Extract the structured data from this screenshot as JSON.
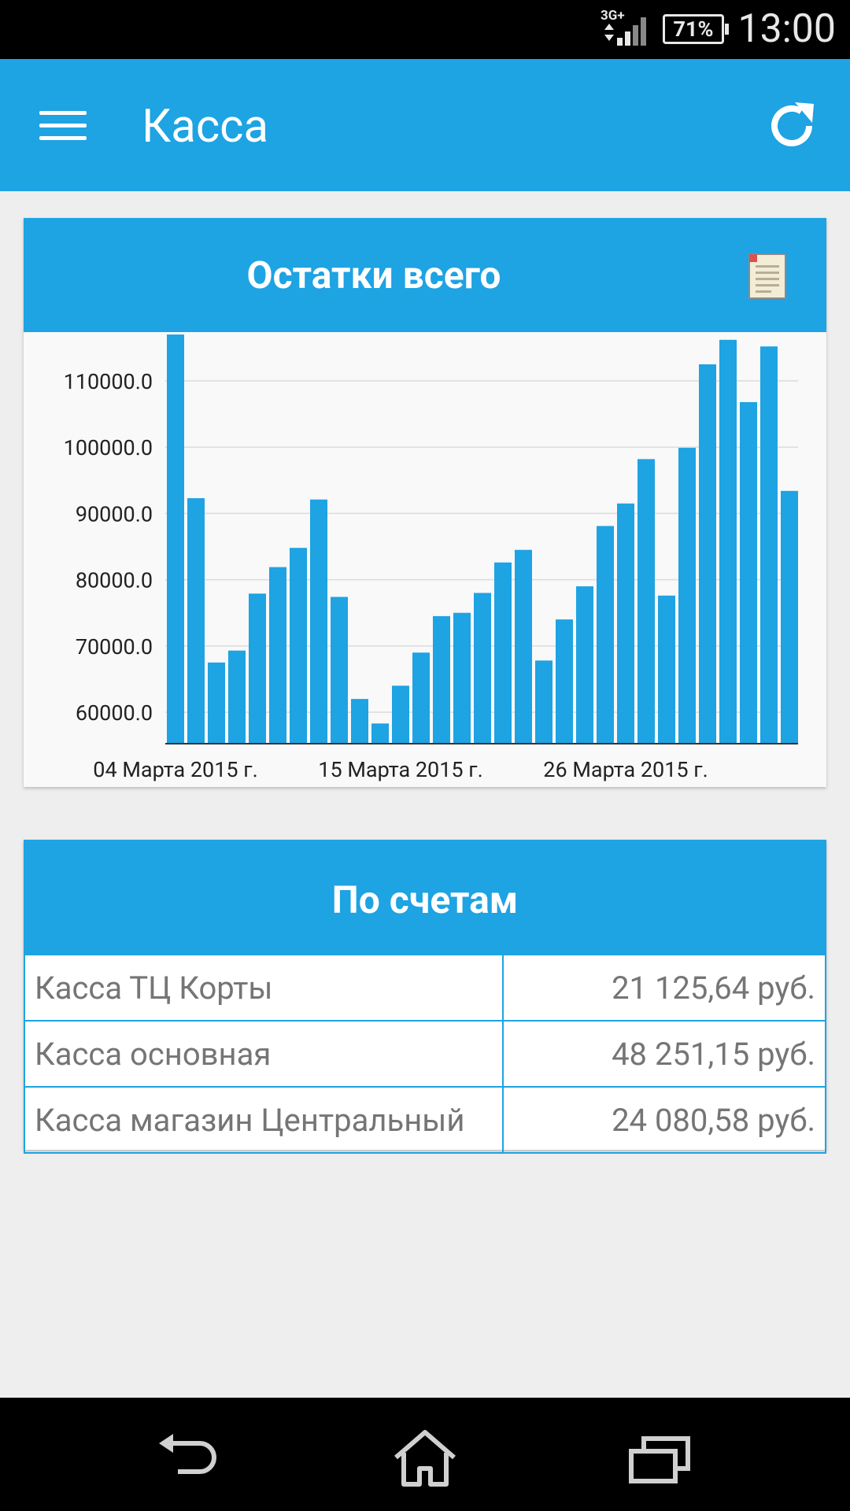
{
  "status_bar": {
    "time": "13:00",
    "battery": "71%",
    "network": "3G+",
    "colors": {
      "bg": "#000000",
      "fg": "#e8e8e8"
    }
  },
  "app_bar": {
    "title": "Касса",
    "icons": [
      "menu-icon",
      "refresh-icon"
    ],
    "color": "#1ea3e3"
  },
  "balance_card": {
    "title": "Остатки всего",
    "icon": "report-document-icon"
  },
  "chart_data": {
    "type": "bar",
    "title": "Остатки всего",
    "xlabel": "",
    "ylabel": "",
    "x_ticks": [
      "04 Марта 2015 г.",
      "15 Марта 2015 г.",
      "26 Марта 2015 г."
    ],
    "y_ticks": [
      "60000.0",
      "70000.0",
      "80000.0",
      "90000.0",
      "100000.0",
      "110000.0"
    ],
    "ylim": [
      55300,
      118000
    ],
    "grid": true,
    "bar_color": "#1ea3e3",
    "values": [
      117000,
      92300,
      67500,
      69300,
      77900,
      81900,
      84800,
      92100,
      77400,
      62000,
      58300,
      64000,
      69000,
      74500,
      75000,
      78000,
      82600,
      84500,
      67800,
      74000,
      79000,
      88100,
      91500,
      98200,
      77600,
      99900,
      112500,
      116200,
      106800,
      115200,
      93400
    ]
  },
  "accounts_card": {
    "title": "По счетам",
    "rows": [
      {
        "name": "Касса ТЦ Корты",
        "amount": "21 125,64 руб."
      },
      {
        "name": "Касса основная",
        "amount": "48 251,15 руб."
      },
      {
        "name": "Касса магазин Центральный",
        "amount": "24 080,58 руб."
      }
    ]
  },
  "nav_bar": {
    "icons": [
      "back-icon",
      "home-icon",
      "recents-icon"
    ]
  }
}
